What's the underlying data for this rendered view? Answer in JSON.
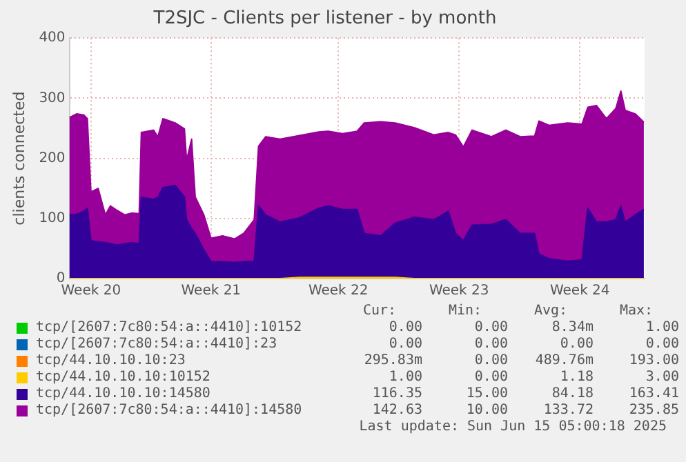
{
  "chart_data": {
    "type": "area",
    "title": "T2SJC - Clients per listener - by month",
    "ylabel": "clients connected",
    "stacked": true,
    "grid": true,
    "legend": "bottom",
    "marker": "none",
    "x": [
      "2025-05-12T21:00",
      "2025-05-13T07:00",
      "2025-05-13T17:00",
      "2025-05-13T22:00",
      "2025-05-14T03:00",
      "2025-05-14T13:00",
      "2025-05-14T23:00",
      "2025-05-15T06:00",
      "2025-05-15T16:00",
      "2025-05-16T02:00",
      "2025-05-16T12:00",
      "2025-05-16T22:00",
      "2025-05-17T01:00",
      "2025-05-17T18:00",
      "2025-05-18T00:00",
      "2025-05-18T07:00",
      "2025-05-19T00:00",
      "2025-05-19T13:00",
      "2025-05-19T16:00",
      "2025-05-19T23:00",
      "2025-05-20T04:00",
      "2025-05-20T16:00",
      "2025-05-21T02:00",
      "2025-05-21T18:00",
      "2025-05-22T11:00",
      "2025-05-23T00:00",
      "2025-05-23T14:00",
      "2025-05-23T20:00",
      "2025-05-24T06:00",
      "2025-05-25T02:00",
      "2025-05-26T05:00",
      "2025-05-27T08:00",
      "2025-05-27T21:00",
      "2025-05-28T17:00",
      "2025-05-29T13:00",
      "2025-05-29T23:00",
      "2025-05-30T22:00",
      "2025-05-31T18:00",
      "2025-06-01T21:00",
      "2025-06-03T00:00",
      "2025-06-03T20:00",
      "2025-06-04T06:00",
      "2025-06-04T17:00",
      "2025-06-05T05:00",
      "2025-06-06T08:00",
      "2025-06-07T04:00",
      "2025-06-08T00:00",
      "2025-06-08T20:00",
      "2025-06-09T02:00",
      "2025-06-09T16:00",
      "2025-06-10T18:00",
      "2025-06-11T14:00",
      "2025-06-11T22:00",
      "2025-06-12T10:00",
      "2025-06-13T00:00",
      "2025-06-13T13:00",
      "2025-06-13T20:00",
      "2025-06-14T02:00",
      "2025-06-14T16:00",
      "2025-06-15T04:00"
    ],
    "xlim": [
      "2025-05-12T21:00",
      "2025-06-15T05:00"
    ],
    "xticks": [
      {
        "value": "2025-05-14T03:00",
        "label": "Week 20"
      },
      {
        "value": "2025-05-21T02:00",
        "label": "Week 21"
      },
      {
        "value": "2025-05-28T11:00",
        "label": "Week 22"
      },
      {
        "value": "2025-06-04T11:00",
        "label": "Week 23"
      },
      {
        "value": "2025-06-11T11:00",
        "label": "Week 24"
      }
    ],
    "ylim": [
      0,
      400
    ],
    "yticks": [
      0,
      100,
      200,
      300,
      400
    ],
    "series": [
      {
        "name": "tcp/[2607:7c80:54:a::4410]:10152",
        "color": "#00cc00",
        "values": [
          null,
          null,
          null,
          null,
          null,
          null,
          null,
          null,
          null,
          null,
          null,
          null,
          null,
          null,
          null,
          null,
          null,
          null,
          null,
          null,
          null,
          null,
          null,
          null,
          null,
          null,
          null,
          null,
          null,
          null,
          null,
          null,
          null,
          null,
          null,
          null,
          null,
          null,
          null,
          null,
          null,
          null,
          null,
          null,
          null,
          null,
          null,
          null,
          null,
          null,
          null,
          null,
          null,
          null,
          null,
          null,
          null,
          null,
          null,
          null
        ]
      },
      {
        "name": "tcp/[2607:7c80:54:a::4410]:23",
        "color": "#0066b3",
        "values": [
          null,
          null,
          null,
          null,
          null,
          null,
          null,
          null,
          null,
          null,
          null,
          null,
          null,
          null,
          null,
          null,
          null,
          null,
          null,
          null,
          null,
          null,
          null,
          null,
          null,
          null,
          null,
          null,
          null,
          null,
          null,
          null,
          null,
          null,
          null,
          null,
          null,
          null,
          null,
          null,
          null,
          null,
          null,
          null,
          null,
          null,
          null,
          null,
          null,
          null,
          null,
          null,
          null,
          null,
          null,
          null,
          null,
          null,
          null,
          null
        ]
      },
      {
        "name": "tcp/44.10.10.10:23",
        "color": "#ff8000",
        "values": [
          null,
          null,
          null,
          null,
          null,
          null,
          null,
          null,
          null,
          null,
          null,
          null,
          null,
          null,
          null,
          null,
          null,
          null,
          null,
          null,
          null,
          null,
          null,
          null,
          null,
          null,
          null,
          null,
          null,
          null,
          null,
          null,
          null,
          null,
          null,
          null,
          null,
          null,
          null,
          null,
          null,
          null,
          null,
          null,
          null,
          null,
          null,
          null,
          null,
          null,
          null,
          null,
          null,
          null,
          null,
          null,
          null,
          null,
          null,
          null
        ]
      },
      {
        "name": "tcp/44.10.10.10:10152",
        "color": "#ffcc00",
        "values": [
          0,
          0,
          0,
          0,
          0,
          0,
          0,
          0,
          0,
          0,
          0,
          0,
          0,
          0,
          0,
          0,
          0,
          0,
          0,
          0,
          0,
          0,
          0,
          0,
          0,
          0,
          0,
          0,
          0,
          0,
          2,
          2,
          2,
          2,
          2,
          2,
          2,
          2,
          0,
          0,
          0,
          0,
          0,
          0,
          0,
          0,
          0,
          0,
          0,
          0,
          0,
          0,
          0,
          0,
          0,
          0,
          0,
          0,
          0,
          0
        ]
      },
      {
        "name": "tcp/44.10.10.10:14580",
        "color": "#330099",
        "values": [
          106,
          107,
          112,
          117,
          63,
          61,
          60,
          58,
          56,
          58,
          60,
          58,
          135,
          132,
          135,
          151,
          155,
          136,
          98,
          83,
          75,
          48,
          28,
          28,
          27,
          28,
          29,
          121,
          106,
          94,
          99,
          115,
          119,
          113,
          113,
          73,
          69,
          90,
          102,
          98,
          112,
          75,
          63,
          89,
          90,
          98,
          75,
          75,
          41,
          33,
          29,
          31,
          117,
          94,
          94,
          98,
          121,
          94,
          106,
          115
        ]
      },
      {
        "name": "tcp/[2607:7c80:54:a::4410]:14580",
        "color": "#990099",
        "values": [
          162,
          167,
          160,
          149,
          81,
          89,
          46,
          63,
          57,
          48,
          49,
          50,
          108,
          115,
          101,
          115,
          104,
          113,
          99,
          149,
          61,
          58,
          39,
          43,
          39,
          48,
          69,
          99,
          130,
          138,
          137,
          127,
          124,
          126,
          130,
          184,
          190,
          167,
          149,
          141,
          131,
          164,
          156,
          158,
          146,
          149,
          161,
          162,
          221,
          222,
          230,
          226,
          168,
          194,
          172,
          185,
          191,
          186,
          168,
          145
        ]
      }
    ],
    "annotations": [
      "Cur:",
      "Min:",
      "Avg:",
      "Max:",
      "0.00",
      "0.00",
      "8.34m",
      "1.00",
      "0.00",
      "0.00",
      "0.00",
      "0.00",
      "295.83m",
      "0.00",
      "489.76m",
      "193.00",
      "1.00",
      "0.00",
      "1.18",
      "3.00",
      "116.35",
      "15.00",
      "84.18",
      "163.41",
      "142.63",
      "10.00",
      "133.72",
      "235.85",
      "Last update: Sun Jun 15 05:00:18 2025"
    ]
  }
}
